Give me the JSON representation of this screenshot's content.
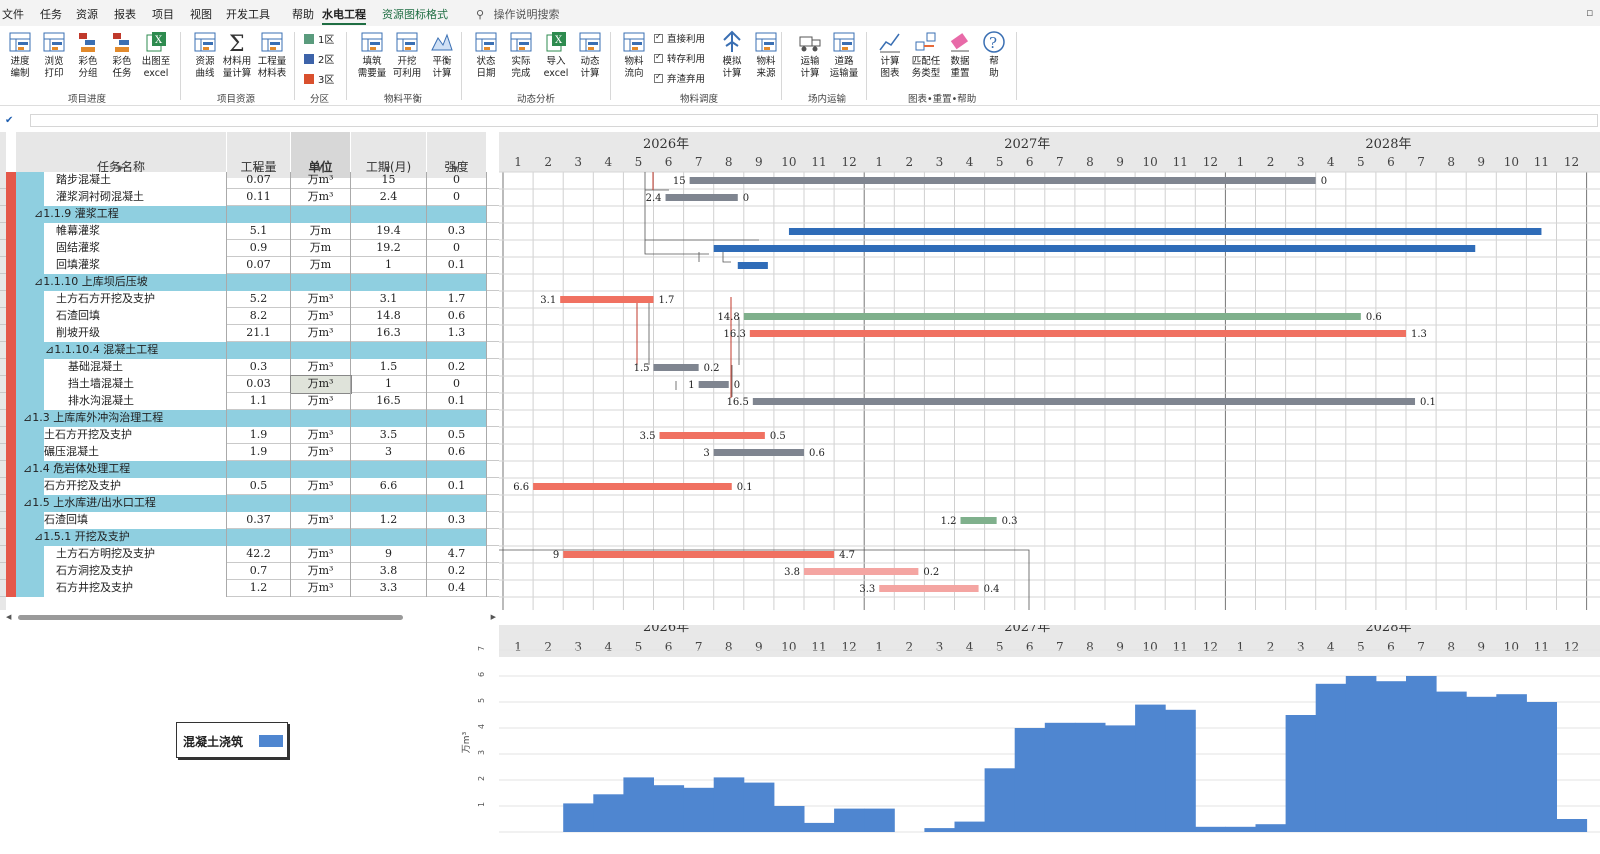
{
  "menu": [
    "文件",
    "任务",
    "资源",
    "报表",
    "项目",
    "视图",
    "开发工具",
    "帮助",
    "水电工程",
    "资源图标格式"
  ],
  "search_label": "操作说明搜索",
  "ribbon": {
    "buttons": [
      {
        "label": "进度\n编制",
        "icon": "schedule-edit-icon"
      },
      {
        "label": "浏览\n打印",
        "icon": "print-preview-icon"
      },
      {
        "label": "彩色\n分组",
        "icon": "color-group-icon"
      },
      {
        "label": "彩色\n任务",
        "icon": "color-task-icon"
      },
      {
        "label": "出图至\nexcel",
        "icon": "excel-export-icon"
      },
      {
        "label": "资源\n曲线",
        "icon": "resource-curve-icon"
      },
      {
        "label": "材料用\n量计算",
        "icon": "sigma-icon"
      },
      {
        "label": "工程量\n材料表",
        "icon": "material-table-icon"
      },
      {
        "label": "填筑\n需要量",
        "icon": "fill-demand-icon"
      },
      {
        "label": "开挖\n可利用",
        "icon": "excavation-usable-icon"
      },
      {
        "label": "平衡\n计算",
        "icon": "balance-icon"
      },
      {
        "label": "状态\n日期",
        "icon": "status-date-icon"
      },
      {
        "label": "实际\n完成",
        "icon": "actual-complete-icon"
      },
      {
        "label": "导入\nexcel",
        "icon": "excel-import-icon"
      },
      {
        "label": "动态\n计算",
        "icon": "dynamic-calc-icon"
      },
      {
        "label": "物料\n流向",
        "icon": "material-flow-icon"
      },
      {
        "label": "模拟\n计算",
        "icon": "simulate-icon"
      },
      {
        "label": "物料\n来源",
        "icon": "material-source-icon"
      },
      {
        "label": "运输\n计算",
        "icon": "truck-icon"
      },
      {
        "label": "道路\n运输量",
        "icon": "road-transport-icon"
      },
      {
        "label": "计算\n图表",
        "icon": "calc-chart-icon"
      },
      {
        "label": "匹配任\n务类型",
        "icon": "match-type-icon"
      },
      {
        "label": "数据\n重置",
        "icon": "eraser-icon"
      },
      {
        "label": "帮\n助",
        "icon": "help-icon"
      }
    ],
    "zones": [
      {
        "label": "1区",
        "color": "#5a9b7d"
      },
      {
        "label": "2区",
        "color": "#3d63a9"
      },
      {
        "label": "3区",
        "color": "#d9502e"
      }
    ],
    "checks": [
      "直接利用",
      "转存利用",
      "弃渣弃用"
    ],
    "groups": [
      "项目进度",
      "项目资源",
      "分区",
      "物料平衡",
      "动态分析",
      "物料调度",
      "场内运输",
      "图表•重置•帮助"
    ]
  },
  "table": {
    "headers": [
      "任务名称",
      "工程量",
      "单位",
      "工期(月)",
      "强度"
    ],
    "rows": [
      {
        "name": "踏步混凝土",
        "indent": 3,
        "qty": "0.07",
        "unit": "万m³",
        "dur": "15",
        "int": "0",
        "group": false
      },
      {
        "name": "灌浆洞衬砌混凝土",
        "indent": 3,
        "qty": "0.11",
        "unit": "万m³",
        "dur": "2.4",
        "int": "0",
        "group": false
      },
      {
        "name": "⊿1.1.9  灌浆工程",
        "indent": 2,
        "qty": "",
        "unit": "",
        "dur": "",
        "int": "",
        "group": true
      },
      {
        "name": "帷幕灌浆",
        "indent": 3,
        "qty": "5.1",
        "unit": "万m",
        "dur": "19.4",
        "int": "0.3",
        "group": false
      },
      {
        "name": "固结灌浆",
        "indent": 3,
        "qty": "0.9",
        "unit": "万m",
        "dur": "19.2",
        "int": "0",
        "group": false
      },
      {
        "name": "回填灌浆",
        "indent": 3,
        "qty": "0.07",
        "unit": "万m",
        "dur": "1",
        "int": "0.1",
        "group": false
      },
      {
        "name": "⊿1.1.10  上库坝后压坡",
        "indent": 2,
        "qty": "",
        "unit": "",
        "dur": "",
        "int": "",
        "group": true
      },
      {
        "name": "土方石方开挖及支护",
        "indent": 3,
        "qty": "5.2",
        "unit": "万m³",
        "dur": "3.1",
        "int": "1.7",
        "group": false
      },
      {
        "name": "石渣回填",
        "indent": 3,
        "qty": "8.2",
        "unit": "万m³",
        "dur": "14.8",
        "int": "0.6",
        "group": false
      },
      {
        "name": "削坡开级",
        "indent": 3,
        "qty": "21.1",
        "unit": "万m³",
        "dur": "16.3",
        "int": "1.3",
        "group": false
      },
      {
        "name": "⊿1.1.10.4  混凝土工程",
        "indent": 3,
        "qty": "",
        "unit": "",
        "dur": "",
        "int": "",
        "group": true
      },
      {
        "name": "基础混凝土",
        "indent": 4,
        "qty": "0.3",
        "unit": "万m³",
        "dur": "1.5",
        "int": "0.2",
        "group": false
      },
      {
        "name": "挡土墙混凝土",
        "indent": 4,
        "qty": "0.03",
        "unit": "万m³",
        "dur": "1",
        "int": "0",
        "group": false,
        "sel": true
      },
      {
        "name": "排水沟混凝土",
        "indent": 4,
        "qty": "1.1",
        "unit": "万m³",
        "dur": "16.5",
        "int": "0.1",
        "group": false
      },
      {
        "name": "⊿1.3  上库库外冲沟治理工程",
        "indent": 1,
        "qty": "",
        "unit": "",
        "dur": "",
        "int": "",
        "group": true
      },
      {
        "name": "土石方开挖及支护",
        "indent": 2,
        "qty": "1.9",
        "unit": "万m³",
        "dur": "3.5",
        "int": "0.5",
        "group": false
      },
      {
        "name": "碾压混凝土",
        "indent": 2,
        "qty": "1.9",
        "unit": "万m³",
        "dur": "3",
        "int": "0.6",
        "group": false
      },
      {
        "name": "⊿1.4  危岩体处理工程",
        "indent": 1,
        "qty": "",
        "unit": "",
        "dur": "",
        "int": "",
        "group": true
      },
      {
        "name": "石方开挖及支护",
        "indent": 2,
        "qty": "0.5",
        "unit": "万m³",
        "dur": "6.6",
        "int": "0.1",
        "group": false
      },
      {
        "name": "⊿1.5  上水库进/出水口工程",
        "indent": 1,
        "qty": "",
        "unit": "",
        "dur": "",
        "int": "",
        "group": true
      },
      {
        "name": "石渣回填",
        "indent": 2,
        "qty": "0.37",
        "unit": "万m³",
        "dur": "1.2",
        "int": "0.3",
        "group": false
      },
      {
        "name": "⊿1.5.1  开挖及支护",
        "indent": 2,
        "qty": "",
        "unit": "",
        "dur": "",
        "int": "",
        "group": true
      },
      {
        "name": "土方石方明挖及支护",
        "indent": 3,
        "qty": "42.2",
        "unit": "万m³",
        "dur": "9",
        "int": "4.7",
        "group": false
      },
      {
        "name": "石方洞挖及支护",
        "indent": 3,
        "qty": "0.7",
        "unit": "万m³",
        "dur": "3.8",
        "int": "0.2",
        "group": false
      },
      {
        "name": "石方井挖及支护",
        "indent": 3,
        "qty": "1.2",
        "unit": "万m³",
        "dur": "3.3",
        "int": "0.4",
        "group": false
      }
    ]
  },
  "timeline": {
    "years": [
      "2026年",
      "2027年",
      "2028年"
    ],
    "months": [
      "1",
      "2",
      "3",
      "4",
      "5",
      "6",
      "7",
      "8",
      "9",
      "10",
      "11",
      "12"
    ]
  },
  "gantt_bars": [
    {
      "row": 0,
      "start": 6.2,
      "end": 27.0,
      "color": "#7f8590",
      "ls": "15",
      "rs": "0"
    },
    {
      "row": 1,
      "start": 5.4,
      "end": 7.8,
      "color": "#7f8590",
      "ls": "2.4",
      "rs": "0"
    },
    {
      "row": 3,
      "start": 9.5,
      "end": 34.5,
      "color": "#2f6cb8",
      "ls": "",
      "rs": ""
    },
    {
      "row": 4,
      "start": 7.0,
      "end": 32.3,
      "color": "#2f6cb8",
      "ls": "",
      "rs": ""
    },
    {
      "row": 5,
      "start": 7.8,
      "end": 8.8,
      "color": "#2f6cb8",
      "ls": "",
      "rs": ""
    },
    {
      "row": 7,
      "start": 1.9,
      "end": 5.0,
      "color": "#f07161",
      "ls": "3.1",
      "rs": "1.7"
    },
    {
      "row": 8,
      "start": 8.0,
      "end": 28.5,
      "color": "#7fb08c",
      "ls": "14.8",
      "rs": "0.6"
    },
    {
      "row": 9,
      "start": 8.2,
      "end": 30.0,
      "color": "#f07161",
      "ls": "16.3",
      "rs": "1.3"
    },
    {
      "row": 11,
      "start": 5.0,
      "end": 6.5,
      "color": "#7f8590",
      "ls": "1.5",
      "rs": "0.2"
    },
    {
      "row": 12,
      "start": 6.5,
      "end": 7.5,
      "color": "#7f8590",
      "ls": "1",
      "rs": "0"
    },
    {
      "row": 13,
      "start": 8.3,
      "end": 30.3,
      "color": "#7f8590",
      "ls": "16.5",
      "rs": "0.1"
    },
    {
      "row": 15,
      "start": 5.2,
      "end": 8.7,
      "color": "#f07161",
      "ls": "3.5",
      "rs": "0.5"
    },
    {
      "row": 16,
      "start": 7.0,
      "end": 10.0,
      "color": "#7f8590",
      "ls": "3",
      "rs": "0.6"
    },
    {
      "row": 18,
      "start": 1.0,
      "end": 7.6,
      "color": "#f07161",
      "ls": "6.6",
      "rs": "0.1"
    },
    {
      "row": 20,
      "start": 15.2,
      "end": 16.4,
      "color": "#7fb08c",
      "ls": "1.2",
      "rs": "0.3"
    },
    {
      "row": 22,
      "start": 2.0,
      "end": 11.0,
      "color": "#f07161",
      "ls": "9",
      "rs": "4.7"
    },
    {
      "row": 23,
      "start": 10.0,
      "end": 13.8,
      "color": "#f4a5a2",
      "ls": "3.8",
      "rs": "0.2"
    },
    {
      "row": 24,
      "start": 12.5,
      "end": 15.8,
      "color": "#f4a5a2",
      "ls": "3.3",
      "rs": "0.4"
    }
  ],
  "chart_data": {
    "type": "bar",
    "title": "",
    "ylabel": "万m³",
    "ylim": [
      0,
      7
    ],
    "yticks": [
      "1",
      "2",
      "3",
      "4",
      "5",
      "6",
      "7"
    ],
    "series": [
      {
        "name": "混凝土浇筑",
        "color": "#4f86d0",
        "values": [
          0,
          0,
          1.1,
          1.45,
          2.1,
          1.8,
          1.7,
          2.1,
          1.9,
          1.0,
          0.35,
          0.9,
          0.9,
          0,
          0.15,
          0.4,
          2.45,
          4.0,
          4.2,
          4.2,
          4.1,
          4.9,
          4.7,
          0.2,
          0.2,
          0.3,
          4.5,
          5.7,
          6.0,
          5.8,
          6.0,
          5.4,
          5.2,
          5.3,
          5.0,
          0.5
        ]
      }
    ],
    "legend": "混凝土浇筑"
  }
}
